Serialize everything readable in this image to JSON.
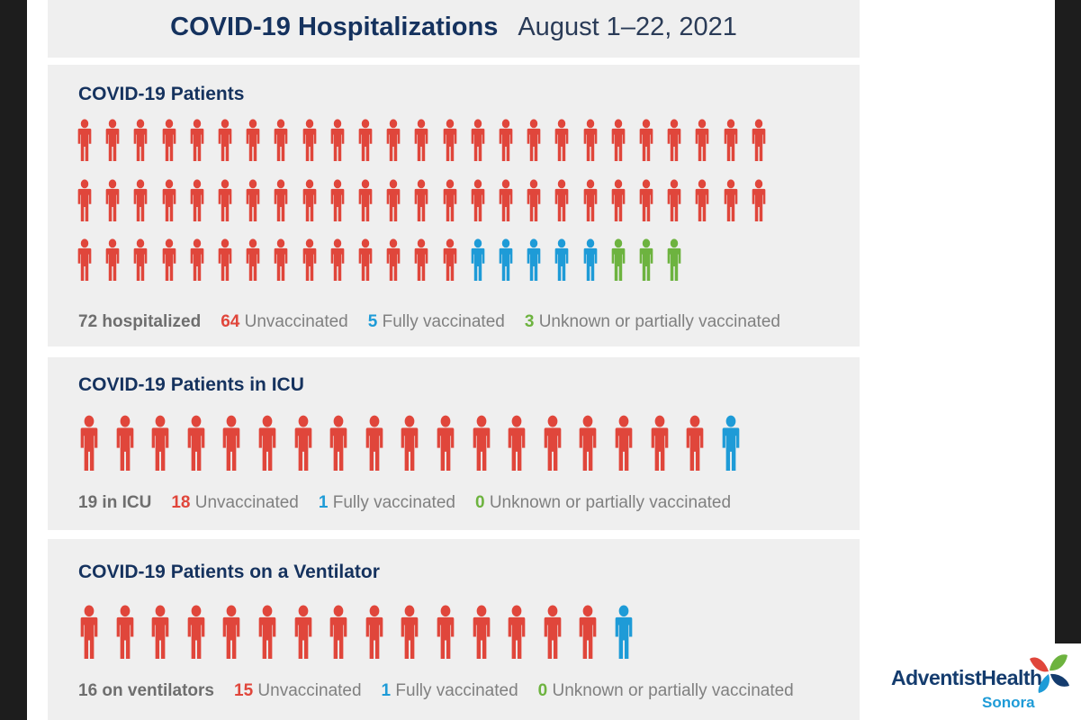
{
  "colors": {
    "unvaccinated": "#e0463b",
    "fully_vaccinated": "#1e9bd7",
    "unknown": "#6db33f",
    "title": "#15325e"
  },
  "header": {
    "title": "COVID-19 Hospitalizations",
    "date_range": "August 1–22, 2021"
  },
  "sections": [
    {
      "title": "COVID-19 Patients",
      "icon": "person-icon",
      "counts": {
        "unvaccinated": 64,
        "fully_vaccinated": 5,
        "unknown": 3
      },
      "total_label": "72 hospitalized",
      "unvaccinated_value": "64",
      "unvaccinated_label": "Unvaccinated",
      "fully_value": "5",
      "fully_label": "Fully vaccinated",
      "unknown_value": "3",
      "unknown_label": "Unknown or partially vaccinated"
    },
    {
      "title": "COVID-19 Patients in ICU",
      "icon": "person-icon",
      "counts": {
        "unvaccinated": 18,
        "fully_vaccinated": 1,
        "unknown": 0
      },
      "total_label": "19 in ICU",
      "unvaccinated_value": "18",
      "unvaccinated_label": "Unvaccinated",
      "fully_value": "1",
      "fully_label": "Fully vaccinated",
      "unknown_value": "0",
      "unknown_label": "Unknown or partially vaccinated"
    },
    {
      "title": "COVID-19 Patients on a Ventilator",
      "icon": "person-icon",
      "counts": {
        "unvaccinated": 15,
        "fully_vaccinated": 1,
        "unknown": 0
      },
      "total_label": "16 on ventilators",
      "unvaccinated_value": "15",
      "unvaccinated_label": "Unvaccinated",
      "fully_value": "1",
      "fully_label": "Fully vaccinated",
      "unknown_value": "0",
      "unknown_label": "Unknown or partially vaccinated"
    }
  ],
  "logo": {
    "name": "AdventistHealth",
    "location": "Sonora"
  }
}
